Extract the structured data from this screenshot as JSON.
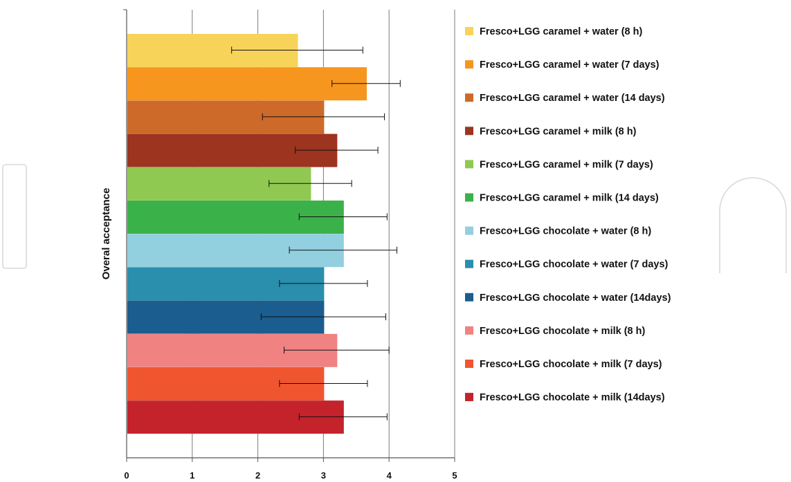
{
  "chart_data": {
    "type": "bar",
    "orientation": "horizontal",
    "ylabel": "Overal acceptance",
    "xlabel": "",
    "xlim": [
      0,
      5
    ],
    "xticks": [
      "0",
      "1",
      "2",
      "3",
      "4",
      "5"
    ],
    "grid": true,
    "legend_position": "right",
    "series": [
      {
        "name": "Fresco+LGG caramel + water (8 h)",
        "value": 2.6,
        "error": 1.0,
        "color": "#f7d35a"
      },
      {
        "name": "Fresco+LGG caramel + water (7 days)",
        "value": 3.65,
        "error": 0.52,
        "color": "#f6961e"
      },
      {
        "name": "Fresco+LGG caramel + water (14 days)",
        "value": 3.0,
        "error": 0.93,
        "color": "#cd6a2a"
      },
      {
        "name": "Fresco+LGG caramel + milk (8 h)",
        "value": 3.2,
        "error": 0.63,
        "color": "#9c3420"
      },
      {
        "name": "Fresco+LGG caramel + milk (7 days)",
        "value": 2.8,
        "error": 0.63,
        "color": "#8fc952"
      },
      {
        "name": "Fresco+LGG caramel + milk (14 days)",
        "value": 3.3,
        "error": 0.67,
        "color": "#3bb14a"
      },
      {
        "name": "Fresco+LGG chocolate + water (8 h)",
        "value": 3.3,
        "error": 0.82,
        "color": "#92cfdf"
      },
      {
        "name": "Fresco+LGG chocolate + water (7 days)",
        "value": 3.0,
        "error": 0.67,
        "color": "#2a8ead"
      },
      {
        "name": "Fresco+LGG chocolate + water (14days)",
        "value": 3.0,
        "error": 0.95,
        "color": "#1b5d8f"
      },
      {
        "name": "Fresco+LGG chocolate + milk (8 h)",
        "value": 3.2,
        "error": 0.8,
        "color": "#f08282"
      },
      {
        "name": "Fresco+LGG chocolate + milk (7 days)",
        "value": 3.0,
        "error": 0.67,
        "color": "#ef5630"
      },
      {
        "name": "Fresco+LGG chocolate + milk (14days)",
        "value": 3.3,
        "error": 0.67,
        "color": "#c4232b"
      }
    ]
  }
}
